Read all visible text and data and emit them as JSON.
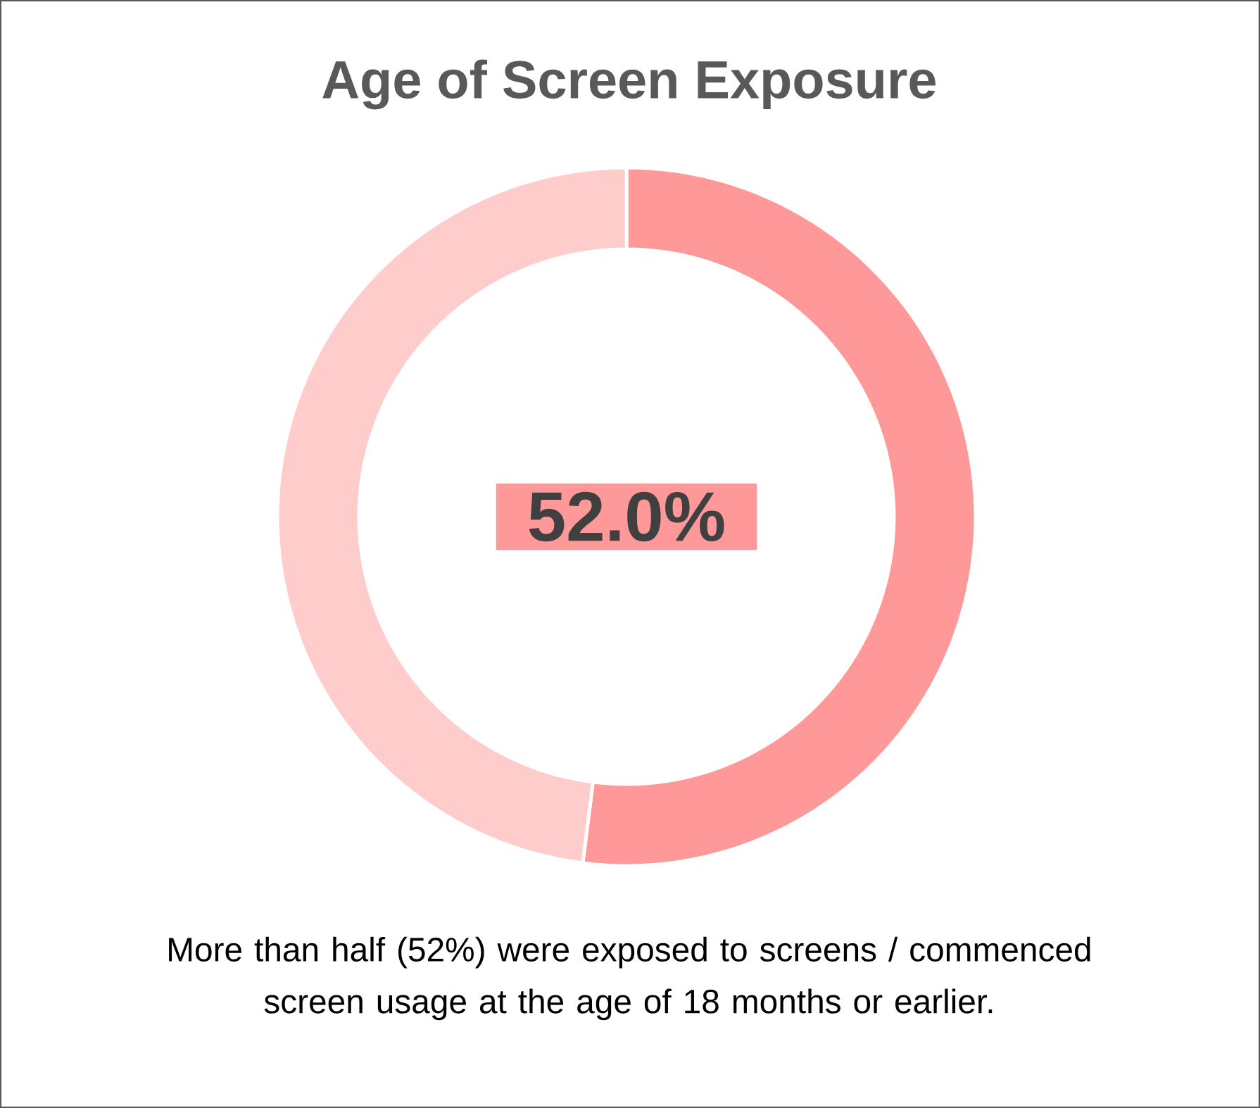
{
  "chart_data": {
    "type": "donut",
    "title": "Age of Screen Exposure",
    "categories": [
      null,
      null
    ],
    "values": [
      52,
      48
    ],
    "colors": [
      "#ff9999",
      "#ffcccc"
    ],
    "value_labels": [
      "52.0%",
      null
    ],
    "annotations": [
      "More than half (52%) were exposed to screens / commenced screen usage at the age of 18 months or earlier."
    ]
  }
}
